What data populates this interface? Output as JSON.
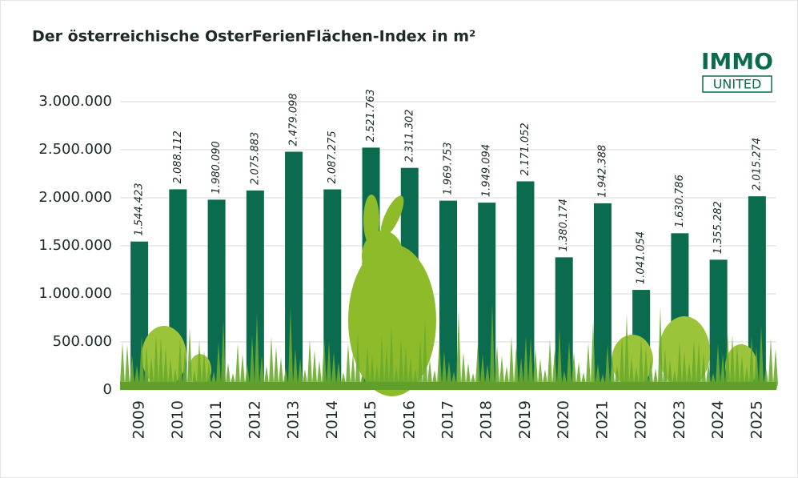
{
  "chart_data": {
    "type": "bar",
    "title": "Der österreichische OsterFerienFlächen-Index in m²",
    "categories": [
      "2009",
      "2010",
      "2011",
      "2012",
      "2013",
      "2014",
      "2015",
      "2016",
      "2017",
      "2018",
      "2019",
      "2020",
      "2021",
      "2022",
      "2023",
      "2024",
      "2025"
    ],
    "values": [
      1544423,
      2088112,
      1980090,
      2075883,
      2479098,
      2087275,
      2521763,
      2311302,
      1969753,
      1949094,
      2171052,
      1380174,
      1942388,
      1041054,
      1630786,
      1355282,
      2015274
    ],
    "value_labels": [
      "1.544.423",
      "2.088.112",
      "1.980.090",
      "2.075.883",
      "2.479.098",
      "2.087.275",
      "2.521.763",
      "2.311.302",
      "1.969.753",
      "1.949.094",
      "2.171.052",
      "1.380.174",
      "1.942.388",
      "1.041.054",
      "1.630.786",
      "1.355.282",
      "2.015.274"
    ],
    "color": "#0b6b4f",
    "ylim": [
      0,
      3000000
    ],
    "yticks": [
      0,
      {
        "value": 500000,
        "label": "500.000"
      },
      {
        "value": 1000000,
        "label": "1.000.000"
      },
      {
        "value": 1500000,
        "label": "1.500.000"
      },
      {
        "value": 2000000,
        "label": "2.000.000"
      },
      {
        "value": 2500000,
        "label": "2.500.000"
      },
      {
        "value": 3000000,
        "label": "3.000.000"
      }
    ],
    "grid": true
  },
  "logo": {
    "top": "IMMO",
    "bottom": "UNITED"
  }
}
